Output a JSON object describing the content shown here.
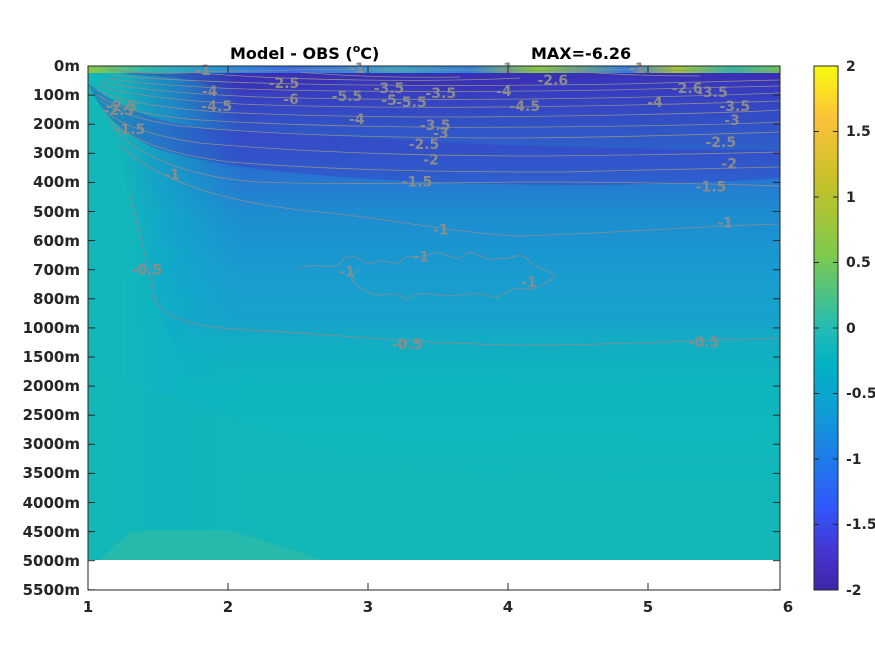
{
  "chart_data": {
    "type": "heatmap",
    "title_left_main": "Model - OBS (",
    "title_left_sup": "o",
    "title_left_end": "C)",
    "title_right": "MAX=-6.26",
    "x_ticks": [
      "1",
      "2",
      "3",
      "4",
      "5",
      "6"
    ],
    "xlim": [
      1,
      6
    ],
    "y_ticks": [
      "0m",
      "100m",
      "200m",
      "300m",
      "400m",
      "500m",
      "600m",
      "700m",
      "800m",
      "1000m",
      "1500m",
      "2000m",
      "2500m",
      "3000m",
      "3500m",
      "4000m",
      "4500m",
      "5000m",
      "5500m"
    ],
    "colorbar": {
      "ticks": [
        "2",
        "1.5",
        "1",
        "0.5",
        "0",
        "-0.5",
        "-1",
        "-1.5",
        "-2"
      ],
      "range": [
        -2,
        2
      ],
      "colors": [
        "#f9fb0e",
        "#fcc13a",
        "#c7c129",
        "#7eca4b",
        "#23bcb3",
        "#01b1c4",
        "#0f9dd5",
        "#1e7be9",
        "#3158fb",
        "#4534cf",
        "#3e26a8"
      ]
    },
    "contour_color": "#8c8c8c",
    "contour_labels": [
      {
        "text": "-1",
        "x": 1.82,
        "depth": "0m+4"
      },
      {
        "text": "-1",
        "x": 2.92,
        "depth": "0m+2"
      },
      {
        "text": "-1",
        "x": 3.98,
        "depth": "0m+2"
      },
      {
        "text": "-1",
        "x": 4.92,
        "depth": "0m+2"
      },
      {
        "text": "-2.5",
        "x": 2.4,
        "depth": "100m-12"
      },
      {
        "text": "-2.6",
        "x": 4.32,
        "depth": "0m+14"
      },
      {
        "text": "-2.6",
        "x": 5.28,
        "depth": "0m+22"
      },
      {
        "text": "-3.5",
        "x": 3.15,
        "depth": "0m+22"
      },
      {
        "text": "-3.5",
        "x": 3.52,
        "depth": "0m+27"
      },
      {
        "text": "-3.5",
        "x": 5.46,
        "depth": "100m-3"
      },
      {
        "text": "-4",
        "x": 1.87,
        "depth": "0m+25"
      },
      {
        "text": "-4",
        "x": 3.97,
        "depth": "0m+25"
      },
      {
        "text": "-4",
        "x": 5.05,
        "depth": "100m+7"
      },
      {
        "text": "-4.5",
        "x": 1.92,
        "depth": "100m+11"
      },
      {
        "text": "-4.5",
        "x": 4.12,
        "depth": "100m+11"
      },
      {
        "text": "-5",
        "x": 3.15,
        "depth": "100m+5"
      },
      {
        "text": "-5.5",
        "x": 2.85,
        "depth": "100m+1"
      },
      {
        "text": "-5.5",
        "x": 3.31,
        "depth": "100m+7"
      },
      {
        "text": "-6",
        "x": 2.45,
        "depth": "100m+4"
      },
      {
        "text": "-2.5",
        "x": 1.24,
        "depth": "100m+11"
      },
      {
        "text": "-2.5",
        "x": 1.22,
        "depth": "200m-14"
      },
      {
        "text": "-1.5",
        "x": 1.3,
        "depth": "200m+5"
      },
      {
        "text": "-4",
        "x": 2.92,
        "depth": "200m-5"
      },
      {
        "text": "-3.5",
        "x": 3.48,
        "depth": "200m+1"
      },
      {
        "text": "-3",
        "x": 3.52,
        "depth": "200m+9"
      },
      {
        "text": "-3.5",
        "x": 5.62,
        "depth": "100m+11"
      },
      {
        "text": "-3",
        "x": 5.6,
        "depth": "200m-4"
      },
      {
        "text": "-2.5",
        "x": 3.4,
        "depth": "200m+20"
      },
      {
        "text": "-2.5",
        "x": 5.52,
        "depth": "200m+18"
      },
      {
        "text": "-2",
        "x": 3.45,
        "depth": "300m+6"
      },
      {
        "text": "-2",
        "x": 5.58,
        "depth": "300m+10"
      },
      {
        "text": "-1.5",
        "x": 3.35,
        "depth": "400m-1"
      },
      {
        "text": "-1.5",
        "x": 5.45,
        "depth": "400m+4"
      },
      {
        "text": "-1",
        "x": 1.6,
        "depth": "400m-8"
      },
      {
        "text": "-1",
        "x": 3.52,
        "depth": "600m-11"
      },
      {
        "text": "-1",
        "x": 5.55,
        "depth": "600m-18"
      },
      {
        "text": "-1",
        "x": 3.38,
        "depth": "700m-13"
      },
      {
        "text": "-1",
        "x": 2.85,
        "depth": "700m+2"
      },
      {
        "text": "-1",
        "x": 4.15,
        "depth": "800m-17"
      },
      {
        "text": "-0.5",
        "x": 1.42,
        "depth": "700m"
      },
      {
        "text": "-0.5",
        "x": 3.28,
        "depth": "1500m-13"
      },
      {
        "text": "-0.5",
        "x": 5.4,
        "depth": "1500m-15"
      }
    ]
  }
}
